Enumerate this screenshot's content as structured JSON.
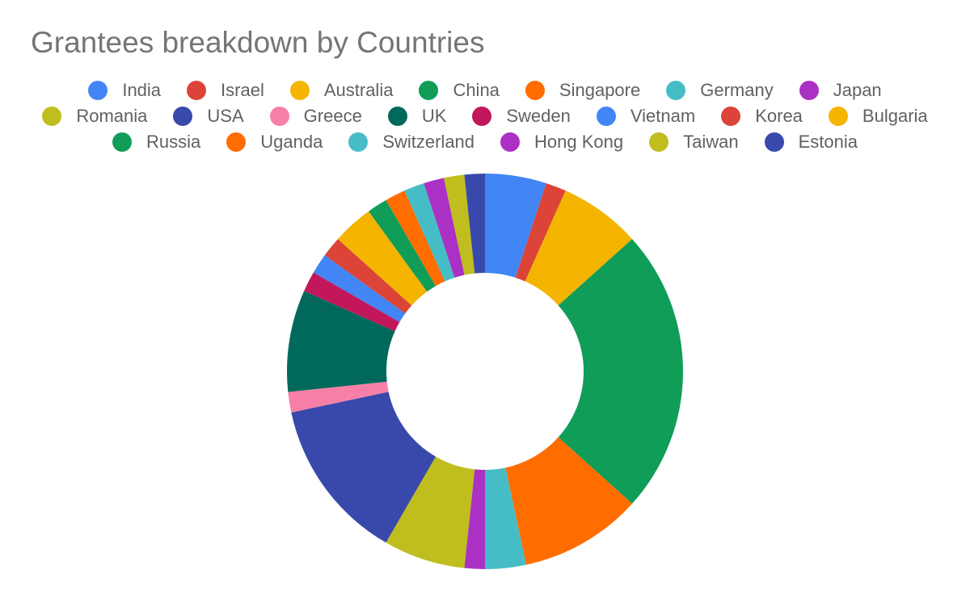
{
  "chart_data": {
    "type": "donut",
    "title": "Grantees breakdown by Countries",
    "categories": [
      "India",
      "Israel",
      "Australia",
      "China",
      "Singapore",
      "Germany",
      "Japan",
      "Romania",
      "USA",
      "Greece",
      "UK",
      "Sweden",
      "Vietnam",
      "Korea",
      "Bulgaria",
      "Russia",
      "Uganda",
      "Switzerland",
      "Hong Kong",
      "Taiwan",
      "Estonia"
    ],
    "values": [
      3,
      1,
      4,
      14,
      6,
      2,
      1,
      4,
      8,
      1,
      5,
      1,
      1,
      1,
      2,
      1,
      1,
      1,
      1,
      1,
      1
    ],
    "colors": [
      "#4285f4",
      "#db4437",
      "#f4b400",
      "#0f9d58",
      "#ff6d00",
      "#46bdc6",
      "#ab30c4",
      "#c0bd1e",
      "#3949ab",
      "#f77fa8",
      "#00695c",
      "#c2185b",
      "#4285f4",
      "#db4437",
      "#f4b400",
      "#0f9d58",
      "#ff6d00",
      "#46bdc6",
      "#ab30c4",
      "#c0bd1e",
      "#3949ab"
    ],
    "legend": "top"
  }
}
